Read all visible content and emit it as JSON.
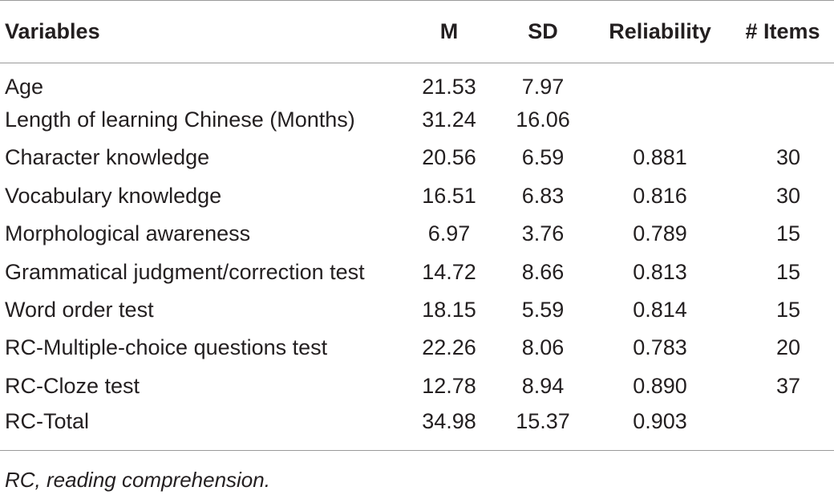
{
  "table": {
    "headers": {
      "variables": "Variables",
      "m": "M",
      "sd": "SD",
      "reliability": "Reliability",
      "items": "# Items"
    },
    "rows": [
      {
        "variable": "Age",
        "m": "21.53",
        "sd": "7.97",
        "reliability": "",
        "items": ""
      },
      {
        "variable": "Length of learning Chinese (Months)",
        "m": "31.24",
        "sd": "16.06",
        "reliability": "",
        "items": ""
      },
      {
        "variable": "Character knowledge",
        "m": "20.56",
        "sd": "6.59",
        "reliability": "0.881",
        "items": "30"
      },
      {
        "variable": "Vocabulary knowledge",
        "m": "16.51",
        "sd": "6.83",
        "reliability": "0.816",
        "items": "30"
      },
      {
        "variable": "Morphological awareness",
        "m": "6.97",
        "sd": "3.76",
        "reliability": "0.789",
        "items": "15"
      },
      {
        "variable": "Grammatical judgment/correction test",
        "m": "14.72",
        "sd": "8.66",
        "reliability": "0.813",
        "items": "15"
      },
      {
        "variable": "Word order test",
        "m": "18.15",
        "sd": "5.59",
        "reliability": "0.814",
        "items": "15"
      },
      {
        "variable": "RC-Multiple-choice questions test",
        "m": "22.26",
        "sd": "8.06",
        "reliability": "0.783",
        "items": "20"
      },
      {
        "variable": "RC-Cloze test",
        "m": "12.78",
        "sd": "8.94",
        "reliability": "0.890",
        "items": "37"
      },
      {
        "variable": "RC-Total",
        "m": "34.98",
        "sd": "15.37",
        "reliability": "0.903",
        "items": ""
      }
    ],
    "footnote": "RC, reading comprehension."
  }
}
